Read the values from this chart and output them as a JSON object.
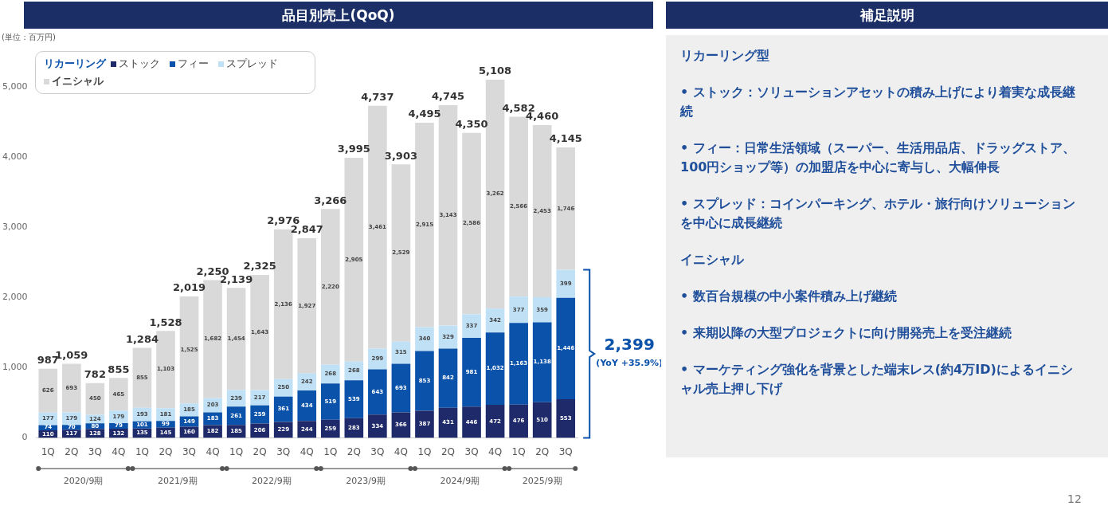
{
  "chart_data": [
    {
      "type": "bar",
      "title": "品目別売上(QoQ)",
      "ylabel": "(単位：百万円)",
      "legend_title": "リカーリング",
      "categories": [
        "1Q",
        "2Q",
        "3Q",
        "4Q",
        "1Q",
        "2Q",
        "3Q",
        "4Q",
        "1Q",
        "2Q",
        "3Q",
        "4Q",
        "1Q",
        "2Q",
        "3Q",
        "4Q",
        "1Q",
        "2Q",
        "3Q",
        "4Q",
        "1Q",
        "2Q",
        "3Q"
      ],
      "stacked": true,
      "legend": "top left",
      "grid": false,
      "ylim": [
        0,
        5500
      ],
      "yticks": [
        0,
        {
          "value": 1000,
          "label": "1,000"
        },
        {
          "value": 2000,
          "label": "2,000"
        },
        {
          "value": 3000,
          "label": "3,000"
        },
        {
          "value": 4000,
          "label": "4,000"
        },
        {
          "value": 5000,
          "label": "5,000"
        }
      ],
      "series": [
        {
          "name": "ストック",
          "color": "#1f2a6b",
          "values": [
            110,
            117,
            128,
            132,
            135,
            145,
            160,
            182,
            185,
            206,
            229,
            244,
            259,
            283,
            334,
            366,
            387,
            431,
            446,
            472,
            476,
            510,
            553
          ],
          "value_labels": [
            "110",
            "117",
            "128",
            "132",
            "135",
            "145",
            "160",
            "182",
            "185",
            "206",
            "229",
            "244",
            "259",
            "283",
            "334",
            "366",
            "387",
            "431",
            "446",
            "472",
            "476",
            "510",
            "553"
          ]
        },
        {
          "name": "フィー",
          "color": "#0a52aa",
          "values": [
            74,
            70,
            80,
            79,
            101,
            99,
            149,
            183,
            261,
            259,
            361,
            434,
            519,
            539,
            643,
            693,
            853,
            842,
            981,
            1032,
            1163,
            1138,
            1446
          ],
          "value_labels": [
            "74",
            "70",
            "80",
            "79",
            "101",
            "99",
            "149",
            "183",
            "261",
            "259",
            "361",
            "434",
            "519",
            "539",
            "643",
            "693",
            "853",
            "842",
            "981",
            "1,032",
            "1,163",
            "1,138",
            "1,446"
          ]
        },
        {
          "name": "スプレッド",
          "color": "#bfe0f5",
          "values": [
            177,
            179,
            124,
            179,
            193,
            181,
            185,
            203,
            239,
            217,
            250,
            242,
            268,
            268,
            299,
            315,
            340,
            329,
            337,
            342,
            377,
            359,
            399
          ],
          "value_labels": [
            "177",
            "179",
            "124",
            "179",
            "193",
            "181",
            "185",
            "203",
            "239",
            "217",
            "250",
            "242",
            "268",
            "268",
            "299",
            "315",
            "340",
            "329",
            "337",
            "342",
            "377",
            "359",
            "399"
          ]
        },
        {
          "name": "イニシャル",
          "color": "#d9d9d9",
          "values": [
            626,
            693,
            450,
            465,
            855,
            1103,
            1525,
            1682,
            1454,
            1643,
            2136,
            1927,
            2220,
            2905,
            3461,
            2529,
            2915,
            3143,
            2586,
            3262,
            2566,
            2453,
            1746
          ],
          "value_labels": [
            "626",
            "693",
            "450",
            "465",
            "855",
            "1,103",
            "1,525",
            "1,682",
            "1,454",
            "1,643",
            "2,136",
            "1,927",
            "2,220",
            "2,905",
            "3,461",
            "2,529",
            "2,915",
            "3,143",
            "2,586",
            "3,262",
            "2,566",
            "2,453",
            "1,746"
          ]
        }
      ],
      "totals": [
        "987",
        "1,059",
        "782",
        "855",
        "1,284",
        "1,528",
        "2,019",
        "2,250",
        "2,139",
        "2,325",
        "2,976",
        "2,847",
        "3,266",
        "3,995",
        "4,737",
        "3,903",
        "4,495",
        "4,745",
        "4,350",
        "5,108",
        "4,582",
        "4,460",
        "4,145"
      ],
      "annotations": [
        "2020/9期",
        "2021/9期",
        "2022/9期",
        "2023/9期",
        "2024/9期",
        "2025/9期",
        "2,399",
        "(YoY +35.9%)",
        "12"
      ]
    },
    {
      "type": "other",
      "title": "補足説明",
      "annotations": [
        "リカーリング型",
        "• ストック：ソリューションアセットの積み上げにより着実な成長継続",
        "• フィー：日常生活領域（スーパー、生活用品店、ドラッグストア、100円ショップ等）の加盟店を中心に寄与し、大幅伸長",
        "• スプレッド：コインパーキング、ホテル・旅行向けソリューションを中心に成長継続",
        "イニシャル",
        "• 数百台規模の中小案件積み上げ継続",
        "• 来期以降の大型プロジェクトに向け開発売上を受注継続",
        "• マーケティング強化を背景とした端末レス(約4万ID)によるイニシャル売上押し下げ"
      ]
    }
  ]
}
